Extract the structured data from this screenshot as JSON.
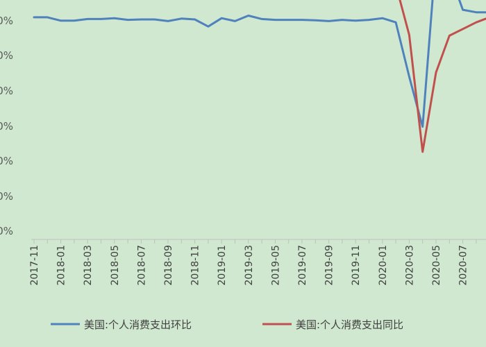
{
  "chart_data": {
    "type": "line",
    "title": "",
    "xlabel": "",
    "ylabel": "",
    "grid": "none",
    "legend_position": "bottom",
    "ytick_labels": [
      "0%",
      "0%",
      "0%",
      "0%",
      "0%",
      "0%",
      "0%"
    ],
    "y_units_note": "",
    "ylim": [
      -25,
      5
    ],
    "x": [
      "2017-11",
      "2017-12",
      "2018-01",
      "2018-02",
      "2018-03",
      "2018-04",
      "2018-05",
      "2018-06",
      "2018-07",
      "2018-08",
      "2018-09",
      "2018-10",
      "2018-11",
      "2018-12",
      "2019-01",
      "2019-02",
      "2019-03",
      "2019-04",
      "2019-05",
      "2019-06",
      "2019-07",
      "2019-08",
      "2019-09",
      "2019-10",
      "2019-11",
      "2019-12",
      "2020-01",
      "2020-02",
      "2020-03",
      "2020-04",
      "2020-05",
      "2020-06",
      "2020-07",
      "2020-08",
      "2020-09"
    ],
    "xtick_labels": [
      "2017-11",
      "2018-01",
      "2018-03",
      "2018-05",
      "2018-07",
      "2018-09",
      "2018-11",
      "2019-01",
      "2019-03",
      "2019-05",
      "2019-07",
      "2019-09",
      "2019-11",
      "2020-01",
      "2020-03",
      "2020-05",
      "2020-07"
    ],
    "series": [
      {
        "name": "美国:个人消费支出环比",
        "color": "#4f81bd",
        "values": [
          0.6,
          0.6,
          0.2,
          0.2,
          0.4,
          0.4,
          0.5,
          0.3,
          0.35,
          0.35,
          0.15,
          0.45,
          0.35,
          -0.5,
          0.5,
          0.15,
          0.8,
          0.4,
          0.3,
          0.3,
          0.3,
          0.25,
          0.15,
          0.3,
          0.2,
          0.3,
          0.5,
          0.0,
          -6.5,
          -12.5,
          8.0,
          6.0,
          1.5,
          1.2,
          1.2
        ]
      },
      {
        "name": "美国:个人消费支出同比",
        "color": "#c0504d",
        "values": [
          4.9,
          4.8,
          4.5,
          4.6,
          4.7,
          4.9,
          5.3,
          5.2,
          5.4,
          5.5,
          4.8,
          5.0,
          4.8,
          3.5,
          4.0,
          3.9,
          4.3,
          4.3,
          4.1,
          4.3,
          4.3,
          4.2,
          4.3,
          4.0,
          3.8,
          4.7,
          4.6,
          4.5,
          -1.5,
          -15.5,
          -6.0,
          -1.6,
          -0.8,
          0.0,
          0.6
        ]
      }
    ]
  }
}
